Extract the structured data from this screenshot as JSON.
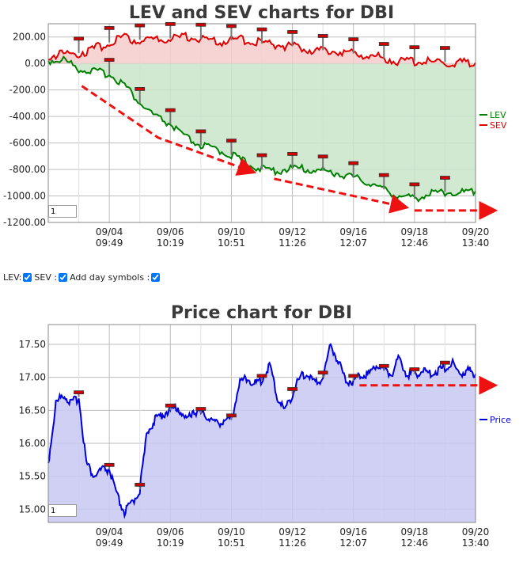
{
  "chart_data": [
    {
      "type": "line",
      "title": "LEV and SEV charts for DBI",
      "categories": [
        "09/04\n09:49",
        "09/06\n10:19",
        "09/10\n10:51",
        "09/12\n11:26",
        "09/16\n12:07",
        "09/18\n12:46",
        "09/20\n13:40"
      ],
      "ylim": [
        -1200,
        300
      ],
      "yticks": [
        "200.00",
        "0.00",
        "-200.00",
        "-400.00",
        "-600.00",
        "-800.00",
        "-1000.00",
        "-1200.00"
      ],
      "legend": [
        "LEV",
        "SEV"
      ],
      "legend_position": "right",
      "grid": true,
      "series": [
        {
          "name": "LEV",
          "color": "#008000",
          "fill": "#c9e4c9",
          "x": [
            0,
            0.5,
            1,
            1.5,
            2,
            2.5,
            3,
            3.5,
            4,
            4.5,
            5,
            5.5,
            6,
            6.5,
            7,
            7.5,
            8,
            8.5,
            9,
            9.5,
            10,
            10.5,
            11,
            11.5,
            12,
            12.5,
            13,
            13.5,
            14
          ],
          "values": [
            20,
            30,
            -40,
            -60,
            -80,
            -160,
            -300,
            -400,
            -460,
            -560,
            -620,
            -650,
            -690,
            -750,
            -800,
            -810,
            -790,
            -800,
            -810,
            -830,
            -860,
            -900,
            -950,
            -1000,
            -1020,
            -980,
            -970,
            -975,
            -965
          ]
        },
        {
          "name": "SEV",
          "color": "#e00000",
          "fill": "#f4cccc",
          "x": [
            0,
            0.5,
            1,
            1.5,
            2,
            2.5,
            3,
            3.5,
            4,
            4.5,
            5,
            5.5,
            6,
            6.5,
            7,
            7.5,
            8,
            8.5,
            9,
            9.5,
            10,
            10.5,
            11,
            11.5,
            12,
            12.5,
            13,
            13.5,
            14
          ],
          "values": [
            60,
            70,
            80,
            110,
            160,
            190,
            180,
            170,
            190,
            200,
            185,
            160,
            175,
            180,
            150,
            140,
            130,
            110,
            100,
            90,
            75,
            60,
            40,
            20,
            15,
            10,
            10,
            5,
            5
          ]
        }
      ],
      "day_markers": {
        "series": "LEV",
        "x": [
          2,
          3,
          4,
          5,
          6,
          7,
          8,
          9,
          10,
          11,
          12,
          13
        ]
      },
      "sev_markers": {
        "x": [
          1,
          2,
          3,
          4,
          5,
          6,
          7,
          8,
          9,
          10,
          11,
          12,
          13
        ]
      },
      "trend_arrows": [
        {
          "points": [
            [
              1.1,
              -170
            ],
            [
              3.6,
              -560
            ],
            [
              6.6,
              -810
            ]
          ]
        },
        {
          "points": [
            [
              7.4,
              -870
            ],
            [
              11.6,
              -1080
            ]
          ]
        },
        {
          "points": [
            [
              12,
              -1110
            ],
            [
              14.5,
              -1110
            ]
          ]
        }
      ]
    },
    {
      "type": "area",
      "title": "Price chart for DBI",
      "categories": [
        "09/04\n09:49",
        "09/06\n10:19",
        "09/10\n10:51",
        "09/12\n11:26",
        "09/16\n12:07",
        "09/18\n12:46",
        "09/20\n13:40"
      ],
      "ylim": [
        14.8,
        17.8
      ],
      "yticks": [
        "17.50",
        "17.00",
        "16.50",
        "16.00",
        "15.50",
        "15.00"
      ],
      "legend": [
        "Price"
      ],
      "legend_position": "right",
      "grid": true,
      "series": [
        {
          "name": "Price",
          "color": "#0000dd",
          "fill": "#c8c8f2",
          "x": [
            0,
            0.25,
            0.5,
            0.75,
            1,
            1.25,
            1.5,
            1.75,
            2,
            2.25,
            2.5,
            2.75,
            3,
            3.25,
            3.5,
            3.75,
            4,
            4.25,
            4.5,
            4.75,
            5,
            5.25,
            5.5,
            5.75,
            6,
            6.25,
            6.5,
            6.75,
            7,
            7.25,
            7.5,
            7.75,
            8,
            8.25,
            8.5,
            8.75,
            9,
            9.25,
            9.5,
            9.75,
            10,
            10.25,
            10.5,
            10.75,
            11,
            11.25,
            11.5,
            11.75,
            12,
            12.25,
            12.5,
            12.75,
            13,
            13.25,
            13.5,
            13.75,
            14
          ],
          "values": [
            15.7,
            16.6,
            16.75,
            16.6,
            16.7,
            15.7,
            15.5,
            15.6,
            15.6,
            15.2,
            14.95,
            15.1,
            15.3,
            16.2,
            16.35,
            16.45,
            16.5,
            16.55,
            16.35,
            16.5,
            16.45,
            16.4,
            16.3,
            16.35,
            16.35,
            16.9,
            17.0,
            16.9,
            16.95,
            17.2,
            16.7,
            16.5,
            16.75,
            17.0,
            17.05,
            16.9,
            17.0,
            17.5,
            17.25,
            16.95,
            16.95,
            17.05,
            17.05,
            17.2,
            17.1,
            17.05,
            17.3,
            17.05,
            17.05,
            17.1,
            17.05,
            17.1,
            17.15,
            17.2,
            17.05,
            17.1,
            17.05
          ]
        }
      ],
      "day_markers": {
        "series": "Price",
        "x": [
          1,
          2,
          3,
          4,
          5,
          6,
          7,
          8,
          9,
          10,
          11,
          12,
          13
        ]
      },
      "trend_arrows": [
        {
          "points": [
            [
              10.2,
              16.88
            ],
            [
              14.5,
              16.88
            ]
          ]
        }
      ]
    }
  ],
  "controls": {
    "lev_label": "LEV:",
    "sev_label": "SEV :",
    "day_symbols_label": "Add day symbols :"
  },
  "paging": {
    "lev_value": "1",
    "price_value": "1"
  }
}
